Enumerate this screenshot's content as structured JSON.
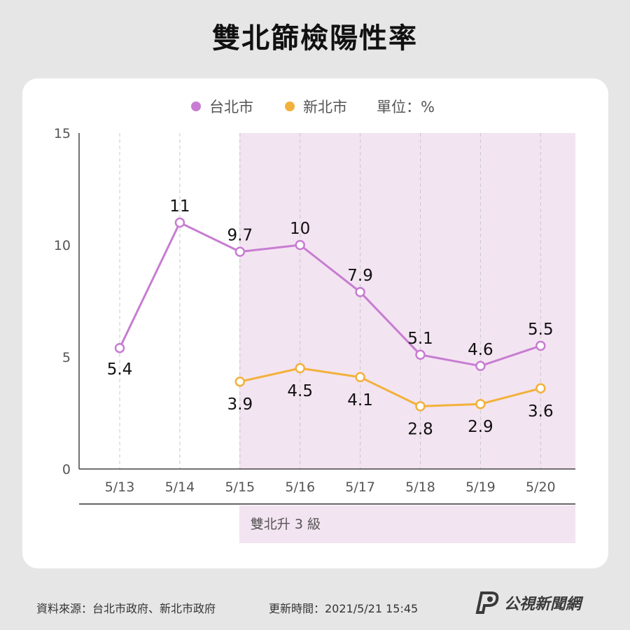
{
  "title": "雙北篩檢陽性率",
  "chart_data": {
    "type": "line",
    "categories": [
      "5/13",
      "5/14",
      "5/15",
      "5/16",
      "5/17",
      "5/18",
      "5/19",
      "5/20"
    ],
    "series": [
      {
        "name": "台北市",
        "color": "#c77dd1",
        "values": [
          5.4,
          11,
          9.7,
          10,
          7.9,
          5.1,
          4.6,
          5.5
        ],
        "labels": [
          "5.4",
          "11",
          "9.7",
          "10",
          "7.9",
          "5.1",
          "4.6",
          "5.5"
        ]
      },
      {
        "name": "新北市",
        "color": "#f2b13a",
        "values": [
          null,
          null,
          3.9,
          4.5,
          4.1,
          2.8,
          2.9,
          3.6
        ],
        "labels": [
          null,
          null,
          "3.9",
          "4.5",
          "4.1",
          "2.8",
          "2.9",
          "3.6"
        ]
      }
    ],
    "unit_label": "單位：%",
    "ylim": [
      0,
      15
    ],
    "yticks": [
      0,
      5,
      10,
      15
    ],
    "grid": "vertical-dashed",
    "legend_position": "top",
    "highlight": {
      "from_category": "5/15",
      "to_category": "5/20",
      "label": "雙北升 3 級",
      "color": "#f3e4f1"
    }
  },
  "footer": {
    "source": "資料來源：台北市政府、新北市政府",
    "updated": "更新時間：2021/5/21 15:45",
    "brand": "公視新聞網"
  }
}
